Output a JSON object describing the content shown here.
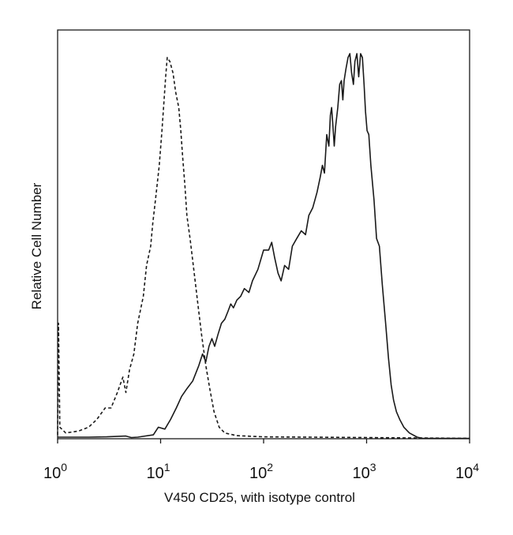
{
  "chart_data": {
    "type": "line",
    "title": "",
    "xlabel": "V450 CD25, with isotype control",
    "ylabel": "Relative Cell Number",
    "x_scale": "log",
    "xlim": [
      1,
      10000
    ],
    "ylim": [
      0,
      100
    ],
    "grid": false,
    "legend": "none",
    "x_ticks": [
      {
        "base": "10",
        "exp": "0",
        "value": 1
      },
      {
        "base": "10",
        "exp": "1",
        "value": 10
      },
      {
        "base": "10",
        "exp": "2",
        "value": 100
      },
      {
        "base": "10",
        "exp": "3",
        "value": 1000
      },
      {
        "base": "10",
        "exp": "4",
        "value": 10000
      }
    ],
    "series": [
      {
        "style": "dashed",
        "color": "#1a1a1a",
        "points": [
          [
            1.0,
            1
          ],
          [
            1.02,
            30
          ],
          [
            1.05,
            3
          ],
          [
            1.2,
            1.5
          ],
          [
            1.6,
            2
          ],
          [
            2.0,
            3
          ],
          [
            2.4,
            5
          ],
          [
            2.9,
            8
          ],
          [
            3.3,
            8
          ],
          [
            3.8,
            12
          ],
          [
            4.3,
            16
          ],
          [
            4.6,
            12
          ],
          [
            5.0,
            18
          ],
          [
            5.5,
            22
          ],
          [
            6.0,
            30
          ],
          [
            6.8,
            37
          ],
          [
            7.3,
            45
          ],
          [
            8.0,
            50
          ],
          [
            8.4,
            56
          ],
          [
            9.0,
            63
          ],
          [
            9.7,
            71
          ],
          [
            10.3,
            80
          ],
          [
            10.8,
            88
          ],
          [
            11.2,
            94
          ],
          [
            11.6,
            99
          ],
          [
            12.3,
            98
          ],
          [
            13.2,
            95
          ],
          [
            14.0,
            90
          ],
          [
            15.0,
            86
          ],
          [
            15.7,
            80
          ],
          [
            16.4,
            73
          ],
          [
            17.2,
            66
          ],
          [
            18.0,
            58
          ],
          [
            19.3,
            52
          ],
          [
            21.0,
            44
          ],
          [
            23.0,
            35
          ],
          [
            25.0,
            27
          ],
          [
            27.5,
            19
          ],
          [
            30.0,
            13
          ],
          [
            33.0,
            7
          ],
          [
            37.0,
            3
          ],
          [
            42.0,
            1.5
          ],
          [
            55.0,
            0.8
          ],
          [
            100,
            0.5
          ],
          [
            300,
            0.4
          ],
          [
            1000,
            0.3
          ],
          [
            3000,
            0.2
          ],
          [
            10000,
            0.1
          ]
        ]
      },
      {
        "style": "solid",
        "color": "#1a1a1a",
        "points": [
          [
            1.0,
            0.4
          ],
          [
            2.0,
            0.4
          ],
          [
            3.0,
            0.5
          ],
          [
            4.6,
            0.7
          ],
          [
            5.2,
            0.3
          ],
          [
            6.0,
            0.4
          ],
          [
            8.5,
            1
          ],
          [
            9.5,
            3
          ],
          [
            11.0,
            2.5
          ],
          [
            12.5,
            5
          ],
          [
            14.2,
            8
          ],
          [
            16.0,
            11
          ],
          [
            18.0,
            13
          ],
          [
            20.5,
            15
          ],
          [
            23.5,
            19
          ],
          [
            25.5,
            22
          ],
          [
            27.5,
            20
          ],
          [
            29.5,
            24
          ],
          [
            31.5,
            26
          ],
          [
            33.5,
            24
          ],
          [
            36.0,
            27
          ],
          [
            39.0,
            30
          ],
          [
            42.0,
            31
          ],
          [
            45.0,
            33
          ],
          [
            48.0,
            35
          ],
          [
            51.0,
            34
          ],
          [
            55.0,
            36
          ],
          [
            60.0,
            37
          ],
          [
            65.0,
            39
          ],
          [
            72.0,
            38
          ],
          [
            78.0,
            41
          ],
          [
            88.0,
            44
          ],
          [
            100,
            49
          ],
          [
            112,
            49
          ],
          [
            120,
            51
          ],
          [
            128,
            47
          ],
          [
            138,
            43
          ],
          [
            148,
            41
          ],
          [
            160,
            45
          ],
          [
            175,
            44
          ],
          [
            190,
            50
          ],
          [
            210,
            52
          ],
          [
            232,
            54
          ],
          [
            255,
            53
          ],
          [
            275,
            58
          ],
          [
            300,
            60
          ],
          [
            330,
            64
          ],
          [
            355,
            68
          ],
          [
            372,
            71
          ],
          [
            390,
            69
          ],
          [
            410,
            79
          ],
          [
            430,
            76
          ],
          [
            445,
            84
          ],
          [
            458,
            86
          ],
          [
            472,
            81
          ],
          [
            485,
            76
          ],
          [
            500,
            81
          ],
          [
            525,
            86
          ],
          [
            548,
            92
          ],
          [
            570,
            93
          ],
          [
            588,
            88
          ],
          [
            605,
            93
          ],
          [
            630,
            96
          ],
          [
            660,
            99
          ],
          [
            688,
            100
          ],
          [
            715,
            95
          ],
          [
            745,
            92
          ],
          [
            770,
            98
          ],
          [
            805,
            100
          ],
          [
            838,
            94
          ],
          [
            875,
            100
          ],
          [
            910,
            99
          ],
          [
            945,
            92
          ],
          [
            975,
            85
          ],
          [
            1010,
            80
          ],
          [
            1050,
            79
          ],
          [
            1100,
            71
          ],
          [
            1180,
            62
          ],
          [
            1250,
            52
          ],
          [
            1330,
            50
          ],
          [
            1420,
            40
          ],
          [
            1530,
            30
          ],
          [
            1630,
            21
          ],
          [
            1730,
            14
          ],
          [
            1830,
            10
          ],
          [
            1950,
            7
          ],
          [
            2100,
            5
          ],
          [
            2300,
            3
          ],
          [
            2600,
            1.5
          ],
          [
            3100,
            0.4
          ],
          [
            3500,
            0.1
          ],
          [
            10000,
            0.1
          ]
        ]
      }
    ]
  }
}
